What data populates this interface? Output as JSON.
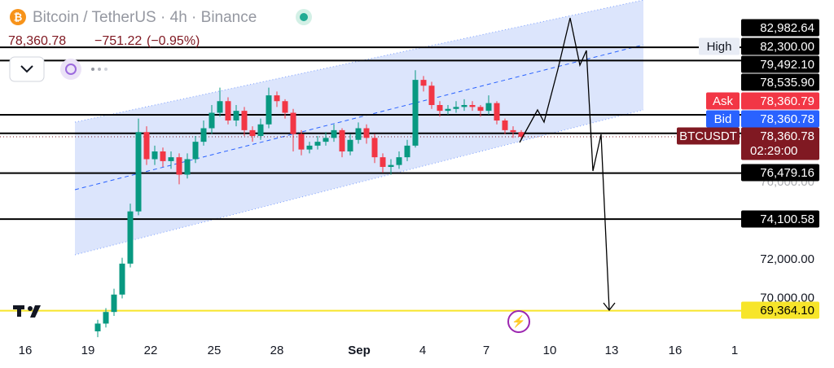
{
  "chart_data": {
    "type": "candlestick",
    "symbol": "Bitcoin / TetherUS",
    "interval": "4h",
    "exchange": "Binance",
    "last": "78,360.78",
    "change": "−751.22",
    "change_pct": "(−0.95%)",
    "up_color": "#089981",
    "down_color": "#f23645",
    "ylim": [
      67540,
      85430
    ],
    "yticks": [
      {
        "value": 70000,
        "label": "70,000.00"
      },
      {
        "value": 72000,
        "label": "72,000.00"
      },
      {
        "value": 76000,
        "label": "76,000.00"
      }
    ],
    "xticks": [
      "16",
      "19",
      "22",
      "25",
      "28",
      "Sep",
      "4",
      "7",
      "10",
      "13",
      "16",
      "1"
    ],
    "open": [
      68300,
      68700,
      69300,
      70200,
      71800,
      74500,
      78600,
      77200,
      77600,
      77100,
      77300,
      76400,
      77200,
      78100,
      78800,
      79600,
      80200,
      79200,
      79700,
      78700,
      78400,
      79000,
      80500,
      80200,
      79600,
      78500,
      77700,
      77900,
      78100,
      78300,
      78700,
      77600,
      78200,
      78800,
      78300,
      77300,
      76800,
      76900,
      77300,
      77900,
      81300,
      81000,
      80000,
      79700,
      79800,
      79900,
      80000,
      79900,
      79700,
      80100,
      79200,
      78700,
      78600
    ],
    "high": [
      68900,
      69500,
      70500,
      72100,
      74900,
      79300,
      78900,
      77900,
      77800,
      77600,
      77500,
      77500,
      78400,
      79200,
      80000,
      80900,
      80400,
      80000,
      79900,
      78900,
      79300,
      80900,
      80700,
      80300,
      79800,
      78700,
      78100,
      78400,
      78600,
      79000,
      78800,
      78500,
      79100,
      79000,
      78500,
      77500,
      77200,
      77600,
      78200,
      81800,
      81500,
      81200,
      80200,
      80000,
      80200,
      80300,
      80200,
      80000,
      80500,
      80200,
      79300,
      78900,
      78700
    ],
    "low": [
      68000,
      68500,
      69100,
      70000,
      71600,
      74300,
      76900,
      76900,
      76800,
      76700,
      75900,
      76200,
      77000,
      77900,
      78500,
      79400,
      79000,
      78900,
      78400,
      78100,
      78200,
      78800,
      79900,
      79300,
      77600,
      77400,
      77500,
      77700,
      77900,
      78100,
      77300,
      77400,
      78000,
      78000,
      77000,
      76500,
      76400,
      76700,
      77100,
      77800,
      80700,
      79800,
      79400,
      79500,
      79600,
      79700,
      79700,
      79400,
      79500,
      79000,
      78500,
      78300,
      78200
    ],
    "close": [
      68700,
      69300,
      70200,
      71800,
      74500,
      78600,
      77200,
      77600,
      77100,
      77300,
      76400,
      77200,
      78100,
      78800,
      79600,
      80200,
      79200,
      79700,
      78700,
      78400,
      79000,
      80500,
      80200,
      79600,
      78500,
      77700,
      77900,
      78100,
      78300,
      78700,
      77600,
      78200,
      78800,
      78300,
      77300,
      76800,
      76900,
      77300,
      77900,
      81300,
      81000,
      80000,
      79700,
      79800,
      79900,
      80000,
      79900,
      79700,
      80100,
      79200,
      78700,
      78600,
      78360
    ],
    "price_levels": [
      {
        "value": 82982.64,
        "label": "82,982.64",
        "color": "#000000"
      },
      {
        "tag": "High",
        "value": 82300,
        "label": "82,300.00",
        "color": "#000000"
      },
      {
        "value": 79492.1,
        "label": "79,492.10",
        "color": "#000000"
      },
      {
        "value": 78535.9,
        "label": "78,535.90",
        "color": "#000000"
      },
      {
        "tag": "Ask",
        "value": 78360.79,
        "label": "78,360.79",
        "color": "#f23645"
      },
      {
        "tag": "Bid",
        "value": 78360.78,
        "label": "78,360.78",
        "color": "#2962ff"
      },
      {
        "tag": "BTCUSDT",
        "value": 78360.78,
        "label": "78,360.78",
        "countdown": "02:29:00",
        "color": "#801922"
      },
      {
        "value": 76479.16,
        "label": "76,479.16",
        "color": "#000000"
      },
      {
        "value": 74100.58,
        "label": "74,100.58",
        "color": "#000000"
      },
      {
        "value": 69364.1,
        "label": "69,364.10",
        "color": "#f7e52a"
      }
    ]
  }
}
